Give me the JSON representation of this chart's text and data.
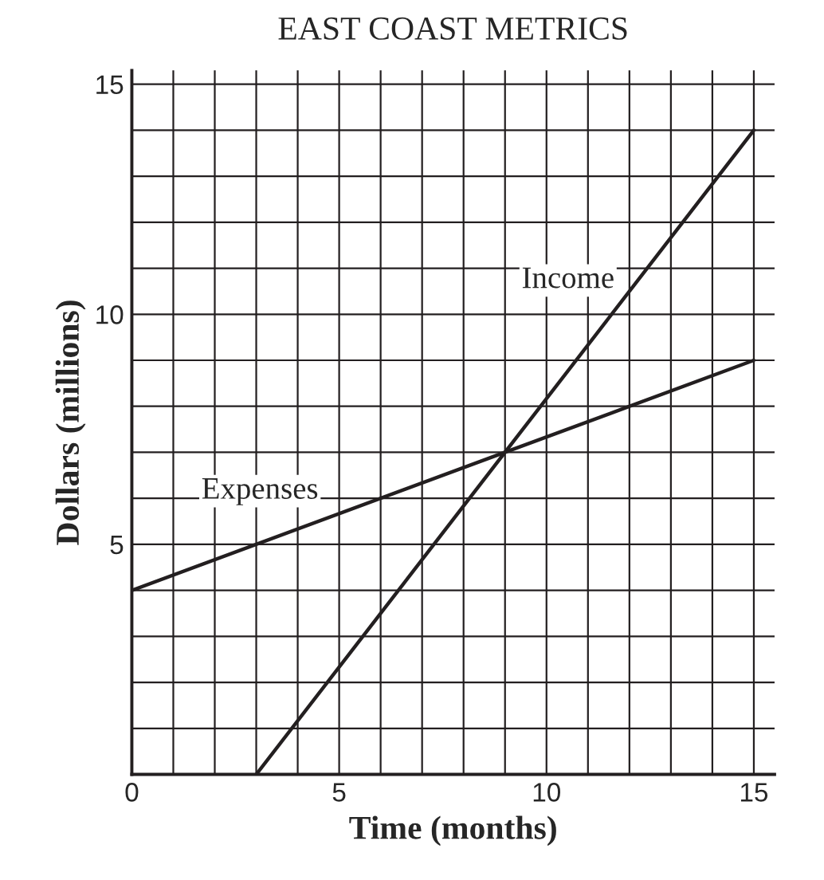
{
  "chart_data": {
    "type": "line",
    "title": "EAST COAST METRICS",
    "xlabel": "Time (months)",
    "ylabel": "Dollars (millions)",
    "series": [
      {
        "name": "Income",
        "color": "#231f20",
        "x": [
          3,
          9,
          15
        ],
        "values": [
          0,
          7,
          14
        ]
      },
      {
        "name": "Expenses",
        "color": "#231f20",
        "x": [
          0,
          9,
          15
        ],
        "values": [
          4,
          7,
          9
        ]
      }
    ],
    "xlim": [
      0,
      15.5
    ],
    "ylim": [
      0,
      15.3
    ],
    "xticks": [
      0,
      {
        "value": 1,
        "label": null
      },
      {
        "value": 2,
        "label": null
      },
      {
        "value": 3,
        "label": null
      },
      {
        "value": 4,
        "label": null
      },
      5,
      {
        "value": 6,
        "label": null
      },
      {
        "value": 7,
        "label": null
      },
      {
        "value": 8,
        "label": null
      },
      {
        "value": 9,
        "label": null
      },
      10,
      {
        "value": 11,
        "label": null
      },
      {
        "value": 12,
        "label": null
      },
      {
        "value": 13,
        "label": null
      },
      {
        "value": 14,
        "label": null
      },
      15
    ],
    "yticks": [
      {
        "value": 0,
        "label": null
      },
      {
        "value": 1,
        "label": null
      },
      {
        "value": 2,
        "label": null
      },
      {
        "value": 3,
        "label": null
      },
      {
        "value": 4,
        "label": null
      },
      5,
      {
        "value": 6,
        "label": null
      },
      {
        "value": 7,
        "label": null
      },
      {
        "value": 8,
        "label": null
      },
      {
        "value": 9,
        "label": null
      },
      10,
      {
        "value": 11,
        "label": null
      },
      {
        "value": 12,
        "label": null
      },
      {
        "value": 13,
        "label": null
      },
      {
        "value": 14,
        "label": null
      },
      15
    ],
    "grid": true,
    "marker": "none",
    "line_style": "solid",
    "legend": false
  }
}
